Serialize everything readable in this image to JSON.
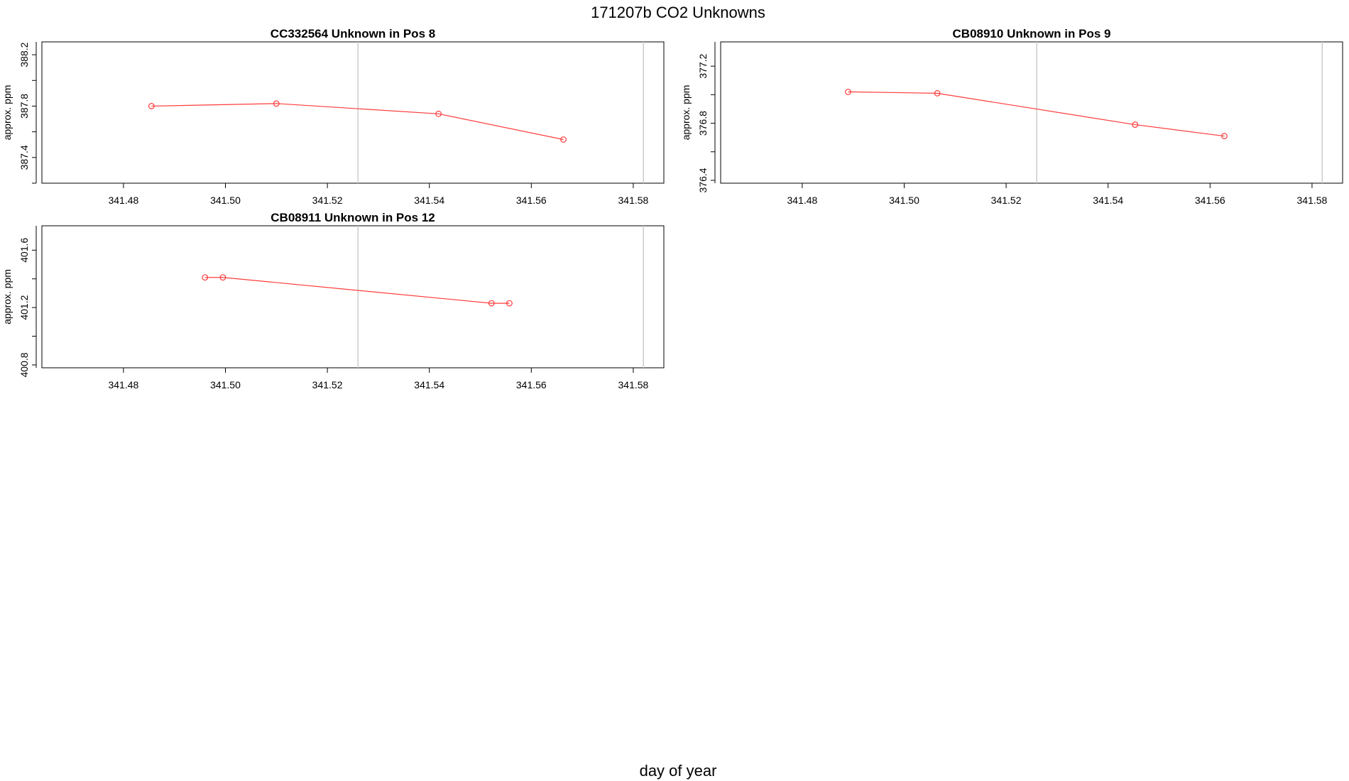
{
  "page_title": "171207b  CO2 Unknowns",
  "x_axis_label": "day of year",
  "series_color": "#ff3b3b",
  "marker_line_color": "#cccccc",
  "chart_data": [
    {
      "type": "line",
      "title": "CC332564    Unknown in Pos 8",
      "xlabel": "",
      "ylabel": "approx. ppm",
      "xlim": [
        341.464,
        341.586
      ],
      "ylim": [
        387.2,
        388.3
      ],
      "xticks": [
        "341.48",
        "341.50",
        "341.52",
        "341.54",
        "341.56",
        "341.58"
      ],
      "yticks": [
        "387.4",
        "387.8",
        "388.2"
      ],
      "vlines": [
        341.526,
        341.582
      ],
      "x": [
        341.4855,
        341.51,
        341.5418,
        341.5663
      ],
      "y": [
        387.8,
        387.82,
        387.74,
        387.54
      ]
    },
    {
      "type": "line",
      "title": "CB08910    Unknown in Pos 9",
      "xlabel": "",
      "ylabel": "approx. ppm",
      "xlim": [
        341.464,
        341.586
      ],
      "ylim": [
        376.38,
        377.37
      ],
      "xticks": [
        "341.48",
        "341.50",
        "341.52",
        "341.54",
        "341.56",
        "341.58"
      ],
      "yticks": [
        "376.4",
        "376.8",
        "377.2"
      ],
      "vlines": [
        341.526,
        341.582
      ],
      "x": [
        341.489,
        341.5065,
        341.5453,
        341.5628
      ],
      "y": [
        377.02,
        377.01,
        376.79,
        376.71
      ]
    },
    {
      "type": "line",
      "title": "CB08911    Unknown in Pos 12",
      "xlabel": "",
      "ylabel": "approx. ppm",
      "xlim": [
        341.464,
        341.586
      ],
      "ylim": [
        400.78,
        401.77
      ],
      "xticks": [
        "341.48",
        "341.50",
        "341.52",
        "341.54",
        "341.56",
        "341.58"
      ],
      "yticks": [
        "400.8",
        "401.2",
        "401.6"
      ],
      "vlines": [
        341.526,
        341.582
      ],
      "x": [
        341.496,
        341.4995,
        341.5522,
        341.5557
      ],
      "y": [
        401.41,
        401.41,
        401.23,
        401.23
      ]
    }
  ]
}
